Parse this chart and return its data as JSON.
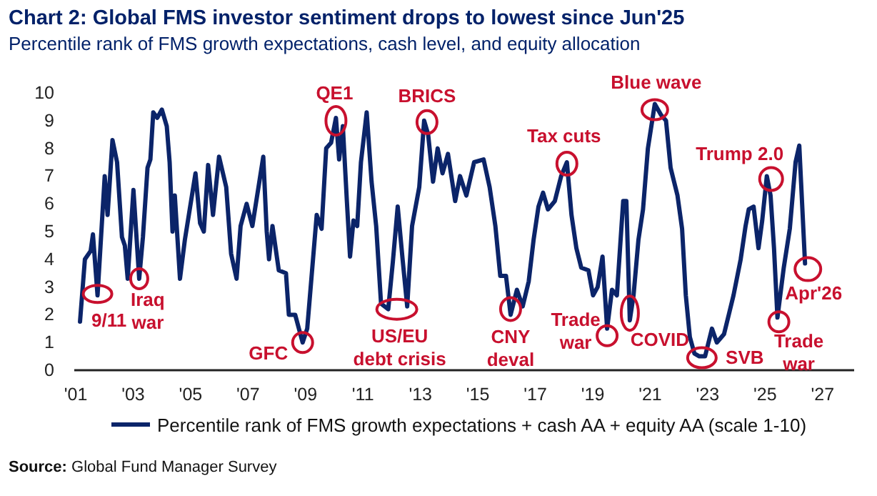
{
  "chart_data": {
    "type": "line",
    "title": "Chart 2: Global FMS investor sentiment drops to lowest since Jun'25",
    "subtitle": "Percentile rank of FMS growth expectations, cash level, and equity allocation",
    "x": [
      2001.15,
      2001.32,
      2001.52,
      2001.6,
      2001.76,
      2002.01,
      2002.11,
      2002.28,
      2002.44,
      2002.61,
      2002.71,
      2002.81,
      2003.01,
      2003.21,
      2003.34,
      2003.5,
      2003.6,
      2003.7,
      2003.84,
      2004.0,
      2004.17,
      2004.27,
      2004.37,
      2004.45,
      2004.63,
      2004.8,
      2005.0,
      2005.17,
      2005.33,
      2005.46,
      2005.61,
      2005.78,
      2005.99,
      2006.24,
      2006.41,
      2006.6,
      2006.74,
      2006.95,
      2007.15,
      2007.53,
      2007.65,
      2007.73,
      2007.85,
      2008.07,
      2008.32,
      2008.42,
      2008.64,
      2008.9,
      2009.06,
      2009.39,
      2009.56,
      2009.72,
      2009.89,
      2010.06,
      2010.17,
      2010.3,
      2010.44,
      2010.55,
      2010.67,
      2010.8,
      2010.93,
      2011.13,
      2011.3,
      2011.46,
      2011.63,
      2011.88,
      2012.04,
      2012.21,
      2012.38,
      2012.54,
      2012.71,
      2012.96,
      2013.13,
      2013.27,
      2013.44,
      2013.6,
      2013.77,
      2013.96,
      2014.21,
      2014.38,
      2014.6,
      2014.87,
      2015.2,
      2015.41,
      2015.61,
      2015.78,
      2015.98,
      2016.14,
      2016.36,
      2016.56,
      2016.77,
      2016.94,
      2017.11,
      2017.27,
      2017.44,
      2017.68,
      2017.9,
      2018.1,
      2018.26,
      2018.43,
      2018.6,
      2018.85,
      2019.01,
      2019.17,
      2019.34,
      2019.5,
      2019.67,
      2019.84,
      2020.06,
      2020.17,
      2020.29,
      2020.42,
      2020.59,
      2020.75,
      2020.92,
      2021.16,
      2021.38,
      2021.55,
      2021.71,
      2021.95,
      2022.11,
      2022.24,
      2022.38,
      2022.54,
      2022.71,
      2022.91,
      2023.15,
      2023.32,
      2023.57,
      2023.9,
      2024.15,
      2024.32,
      2024.43,
      2024.6,
      2024.77,
      2024.9,
      2025.06,
      2025.19,
      2025.31,
      2025.43,
      2025.65,
      2025.86,
      2026.06,
      2026.19,
      2026.39
    ],
    "series": [
      {
        "name": "Percentile rank of FMS growth expectations + cash AA + equity AA (scale 1-10)",
        "color": "#0b2469",
        "values": [
          1.75,
          4.0,
          4.3,
          4.9,
          2.7,
          7.0,
          5.6,
          8.3,
          7.5,
          4.8,
          4.5,
          3.3,
          6.5,
          3.3,
          4.8,
          7.3,
          7.6,
          9.3,
          9.1,
          9.4,
          8.8,
          7.5,
          5.0,
          6.3,
          3.3,
          4.7,
          6.0,
          7.1,
          5.3,
          5.0,
          7.4,
          5.6,
          7.7,
          6.6,
          4.2,
          3.3,
          5.2,
          6.0,
          5.2,
          7.7,
          5.0,
          4.0,
          5.2,
          3.6,
          3.5,
          2.0,
          2.0,
          1.0,
          1.5,
          5.6,
          5.1,
          8.0,
          8.2,
          9.1,
          7.6,
          8.8,
          6.1,
          4.1,
          5.4,
          5.2,
          7.5,
          9.3,
          6.8,
          5.2,
          2.4,
          2.2,
          3.9,
          5.9,
          4.0,
          2.3,
          5.2,
          6.6,
          9.0,
          8.5,
          6.8,
          8.0,
          7.1,
          7.8,
          6.1,
          7.0,
          6.3,
          7.5,
          7.6,
          6.6,
          5.2,
          3.4,
          3.4,
          2.0,
          2.9,
          2.3,
          3.2,
          4.7,
          5.9,
          6.4,
          5.8,
          6.1,
          7.0,
          7.5,
          5.6,
          4.4,
          3.7,
          3.6,
          2.7,
          3.0,
          4.1,
          1.5,
          2.9,
          2.7,
          6.1,
          6.1,
          1.8,
          2.7,
          4.7,
          5.8,
          8.0,
          9.6,
          9.2,
          9.0,
          7.3,
          6.3,
          5.1,
          2.7,
          1.2,
          0.6,
          0.5,
          0.5,
          1.5,
          1.0,
          1.3,
          2.7,
          4.0,
          5.2,
          5.8,
          5.9,
          4.4,
          5.4,
          7.0,
          6.3,
          4.4,
          1.9,
          3.7,
          5.1,
          7.5,
          8.1,
          3.85
        ]
      }
    ],
    "xlim": [
      2000.95,
      2028.1
    ],
    "ylim": [
      0,
      10
    ],
    "xticks": [
      {
        "value": 2001,
        "label": "'01"
      },
      {
        "value": 2003,
        "label": "'03"
      },
      {
        "value": 2005,
        "label": "'05"
      },
      {
        "value": 2007,
        "label": "'07"
      },
      {
        "value": 2009,
        "label": "'09"
      },
      {
        "value": 2011,
        "label": "'11"
      },
      {
        "value": 2013,
        "label": "'13"
      },
      {
        "value": 2015,
        "label": "'15"
      },
      {
        "value": 2017,
        "label": "'17"
      },
      {
        "value": 2019,
        "label": "'19"
      },
      {
        "value": 2021,
        "label": "'21"
      },
      {
        "value": 2023,
        "label": "'23"
      },
      {
        "value": 2025,
        "label": "'25"
      },
      {
        "value": 2027,
        "label": "'27"
      }
    ],
    "yticks": [
      0,
      1,
      2,
      3,
      4,
      5,
      6,
      7,
      8,
      9,
      10
    ],
    "grid": false,
    "legend": "bottom",
    "line_style": "solid",
    "marker": "none",
    "annotations": [
      {
        "text": "9/11",
        "x": 2001.76,
        "y": 2.7
      },
      {
        "text": "Iraq war",
        "x": 2003.21,
        "y": 3.3
      },
      {
        "text": "GFC",
        "x": 2008.9,
        "y": 1.0
      },
      {
        "text": "QE1",
        "x": 2010.06,
        "y": 9.1
      },
      {
        "text": "US/EU debt crisis",
        "x": 2011.88,
        "y": 2.2
      },
      {
        "text": "BRICS",
        "x": 2013.13,
        "y": 9.0
      },
      {
        "text": "CNY deval",
        "x": 2016.14,
        "y": 2.0
      },
      {
        "text": "Tax cuts",
        "x": 2018.1,
        "y": 7.5
      },
      {
        "text": "Trade war",
        "x": 2019.5,
        "y": 1.5
      },
      {
        "text": "COVID",
        "x": 2020.29,
        "y": 1.8
      },
      {
        "text": "Blue wave",
        "x": 2021.16,
        "y": 9.6
      },
      {
        "text": "SVB",
        "x": 2022.8,
        "y": 0.5
      },
      {
        "text": "Trump 2.0",
        "x": 2025.06,
        "y": 7.0
      },
      {
        "text": "Trade war",
        "x": 2025.43,
        "y": 1.9
      },
      {
        "text": "Apr'26",
        "x": 2026.39,
        "y": 3.85
      },
      "Source: Global Fund Manager Survey"
    ]
  }
}
